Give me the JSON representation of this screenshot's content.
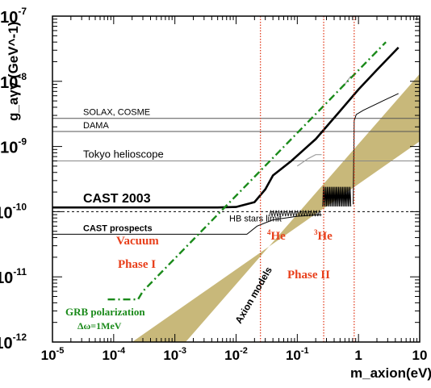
{
  "chart_data": {
    "type": "line",
    "xscale": "log",
    "yscale": "log",
    "xlim": [
      1e-05,
      10
    ],
    "ylim": [
      1e-12,
      1e-07
    ],
    "xlabel": "m_axion(eV)",
    "ylabel": "g_aγγ (GeV^-1)",
    "x_tick_labels": [
      {
        "base": "10",
        "exp": "-5"
      },
      {
        "base": "10",
        "exp": "-4"
      },
      {
        "base": "10",
        "exp": "-3"
      },
      {
        "base": "10",
        "exp": "-2"
      },
      {
        "base": "10",
        "exp": "-1"
      },
      {
        "base": "1",
        "exp": ""
      },
      {
        "base": "10",
        "exp": ""
      }
    ],
    "y_tick_labels": [
      {
        "base": "10",
        "exp": "-12"
      },
      {
        "base": "10",
        "exp": "-11"
      },
      {
        "base": "10",
        "exp": "-10"
      },
      {
        "base": "10",
        "exp": "-9"
      },
      {
        "base": "10",
        "exp": "-8"
      },
      {
        "base": "10",
        "exp": "-7"
      }
    ],
    "colors": {
      "band": "#c8b87a",
      "cast2003": "#000000",
      "grb": "#1a8a1a",
      "vertical_lines": "#e03010",
      "phase2_grey": "#a0a0a0",
      "annotation_red": "#e8401c"
    },
    "axion_band": {
      "lower": [
        [
          0.0002,
          1e-12
        ],
        [
          10,
          1.2e-09
        ]
      ],
      "upper": [
        [
          0.0015,
          1e-12
        ],
        [
          10,
          1.3e-08
        ]
      ]
    },
    "horizontal_limits": [
      {
        "label": "SOLAX, COSME",
        "y": 2.7e-09
      },
      {
        "label": "DAMA",
        "y": 1.7e-09
      },
      {
        "label": "Tokyo  helioscope",
        "y": 6e-10
      }
    ],
    "hb_stars_limit": {
      "label": "HB stars  limit",
      "y": 1e-10
    },
    "cast_2003": {
      "label": "CAST  2003",
      "points": [
        [
          1e-05,
          1.16e-10
        ],
        [
          0.005,
          1.16e-10
        ],
        [
          0.01,
          1.18e-10
        ],
        [
          0.02,
          1.4e-10
        ],
        [
          0.03,
          2.2e-10
        ],
        [
          0.04,
          3.6e-10
        ],
        [
          0.08,
          6e-10
        ],
        [
          0.2,
          1.3e-09
        ],
        [
          0.5,
          3.5e-09
        ],
        [
          1,
          7.5e-09
        ],
        [
          2,
          1.5e-08
        ],
        [
          4.5,
          3.3e-08
        ]
      ]
    },
    "cast_prospects": {
      "label": "CAST  prospects",
      "phase1": [
        [
          1e-05,
          4.5e-11
        ],
        [
          0.015,
          4.5e-11
        ],
        [
          0.022,
          6e-11
        ],
        [
          0.04,
          7.5e-11
        ],
        [
          0.1,
          8.5e-11
        ],
        [
          0.25,
          9e-11
        ]
      ],
      "phase2_wiggle_x": [
        0.035,
        0.24
      ],
      "phase2_wiggle_y": [
        8.5e-11,
        1.05e-10
      ],
      "phase2_grey": [
        [
          0.1,
          5e-10
        ],
        [
          0.15,
          6.5e-10
        ],
        [
          0.2,
          7.5e-10
        ],
        [
          0.25,
          7.5e-10
        ]
      ],
      "he3_wiggle_x": [
        0.26,
        0.75
      ],
      "he3_wiggle_y": [
        1.2e-10,
        2.4e-10
      ],
      "late_black": [
        [
          0.82,
          1.3e-10
        ],
        [
          0.85,
          2.5e-09
        ],
        [
          0.92,
          3.1e-09
        ],
        [
          1.2,
          3.6e-09
        ],
        [
          2.5,
          5e-09
        ],
        [
          4.5,
          6.5e-09
        ]
      ],
      "late_grey": [
        [
          0.6,
          9e-09
        ],
        [
          0.75,
          1.2e-08
        ]
      ]
    },
    "grb_polarization": {
      "points": [
        [
          8e-05,
          4.5e-12
        ],
        [
          0.00025,
          4.5e-12
        ],
        [
          0.0003,
          6e-12
        ],
        [
          2.8,
          4e-08
        ]
      ]
    },
    "vertical_lines_x": [
      0.025,
      0.27,
      0.85
    ],
    "annotations": {
      "vacuum": "Vacuum",
      "phase1": "Phase I",
      "phase2": "Phase II",
      "he4_sup": "4",
      "he4": "He",
      "he3_sup": "3",
      "he3": "He",
      "axion_models": "Axion models",
      "grb_line1": "GRB polarization",
      "grb_line2": "Δω=1MeV"
    }
  }
}
